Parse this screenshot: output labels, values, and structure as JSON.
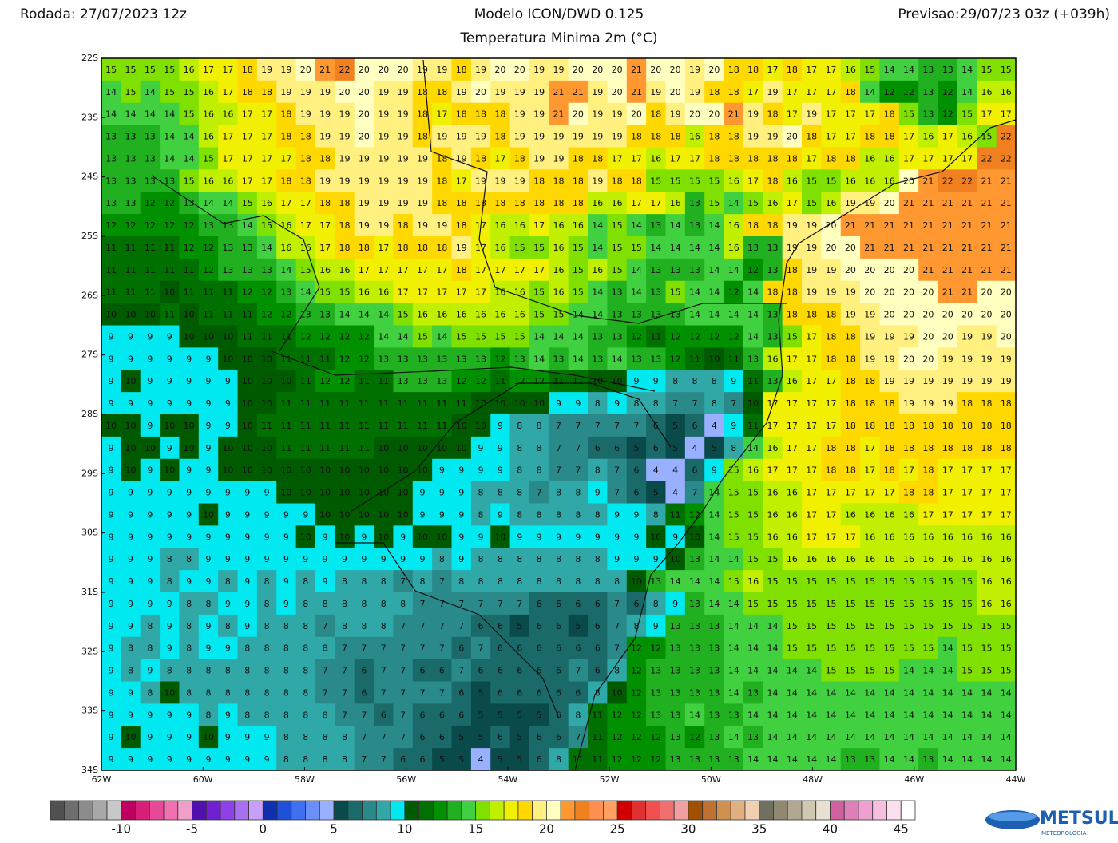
{
  "header": {
    "left": "Rodada: 27/07/2023 12z",
    "center": "Modelo ICON/DWD 0.125",
    "subtitle": "Temperatura Minima 2m (°C)",
    "right": "Previsao:29/07/23 03z (+039h)"
  },
  "lat_labels": [
    "22S",
    "23S",
    "24S",
    "25S",
    "26S",
    "27S",
    "28S",
    "29S",
    "30S",
    "31S",
    "32S",
    "33S",
    "34S"
  ],
  "lon_labels": [
    "62W",
    "60W",
    "58W",
    "56W",
    "54W",
    "52W",
    "50W",
    "48W",
    "46W",
    "44W"
  ],
  "grid": {
    "values": [
      [
        15,
        15,
        15,
        15,
        16,
        17,
        17,
        18,
        19,
        19,
        20,
        21,
        22,
        20,
        20,
        20,
        19,
        19,
        18,
        19,
        20,
        20,
        19,
        19,
        20,
        20,
        20,
        21,
        20,
        20,
        19,
        20,
        18,
        18,
        17,
        18,
        17,
        17,
        16,
        15,
        14,
        14,
        13,
        13,
        14,
        15,
        15
      ],
      [
        14,
        15,
        14,
        15,
        15,
        16,
        17,
        18,
        18,
        19,
        19,
        19,
        20,
        20,
        19,
        19,
        18,
        18,
        19,
        20,
        19,
        19,
        19,
        21,
        21,
        19,
        20,
        21,
        19,
        20,
        19,
        18,
        18,
        17,
        19,
        17,
        17,
        17,
        18,
        14,
        12,
        12,
        13,
        12,
        14,
        16,
        16
      ],
      [
        14,
        14,
        14,
        14,
        15,
        16,
        16,
        17,
        17,
        18,
        19,
        19,
        19,
        20,
        19,
        19,
        18,
        17,
        18,
        18,
        18,
        19,
        19,
        21,
        20,
        19,
        19,
        20,
        18,
        19,
        20,
        20,
        21,
        19,
        18,
        17,
        19,
        17,
        17,
        17,
        18,
        15,
        13,
        12,
        15,
        17,
        17
      ],
      [
        13,
        13,
        13,
        14,
        14,
        16,
        17,
        17,
        17,
        18,
        18,
        19,
        19,
        20,
        19,
        19,
        18,
        19,
        19,
        19,
        18,
        19,
        19,
        19,
        19,
        19,
        19,
        18,
        18,
        18,
        16,
        18,
        18,
        19,
        19,
        20,
        18,
        17,
        17,
        18,
        18,
        17,
        16,
        17,
        16,
        15,
        22
      ],
      [
        13,
        13,
        13,
        14,
        14,
        15,
        17,
        17,
        17,
        17,
        18,
        18,
        19,
        19,
        19,
        19,
        19,
        18,
        19,
        18,
        17,
        18,
        19,
        19,
        18,
        18,
        17,
        17,
        16,
        17,
        17,
        18,
        18,
        18,
        18,
        18,
        17,
        18,
        18,
        16,
        16,
        17,
        17,
        17,
        17,
        22,
        22
      ],
      [
        13,
        13,
        13,
        13,
        15,
        16,
        16,
        17,
        17,
        18,
        18,
        19,
        19,
        19,
        19,
        19,
        19,
        18,
        17,
        19,
        19,
        19,
        18,
        18,
        18,
        19,
        18,
        18,
        15,
        15,
        15,
        15,
        16,
        17,
        18,
        16,
        15,
        15,
        16,
        16,
        16,
        20,
        21,
        22,
        22,
        21,
        21
      ],
      [
        13,
        13,
        12,
        12,
        13,
        14,
        14,
        15,
        16,
        17,
        17,
        18,
        18,
        19,
        19,
        19,
        19,
        18,
        18,
        18,
        18,
        18,
        18,
        18,
        18,
        16,
        16,
        17,
        17,
        16,
        13,
        15,
        14,
        15,
        16,
        17,
        15,
        16,
        19,
        19,
        20,
        21,
        21,
        21,
        21,
        21,
        21
      ],
      [
        12,
        12,
        12,
        12,
        12,
        13,
        13,
        14,
        15,
        16,
        17,
        17,
        18,
        19,
        19,
        18,
        19,
        19,
        18,
        17,
        16,
        16,
        17,
        16,
        16,
        14,
        15,
        14,
        13,
        14,
        13,
        14,
        16,
        18,
        18,
        19,
        19,
        20,
        21,
        21,
        21,
        21,
        21,
        21,
        21,
        21,
        21
      ],
      [
        11,
        11,
        11,
        11,
        12,
        12,
        13,
        13,
        14,
        16,
        16,
        17,
        18,
        18,
        17,
        18,
        18,
        18,
        19,
        17,
        16,
        15,
        15,
        16,
        15,
        14,
        15,
        15,
        14,
        14,
        14,
        14,
        16,
        13,
        13,
        19,
        19,
        20,
        20,
        21,
        21,
        21,
        21,
        21,
        21,
        21,
        21
      ],
      [
        11,
        11,
        11,
        11,
        11,
        12,
        13,
        13,
        13,
        14,
        15,
        16,
        16,
        17,
        17,
        17,
        17,
        17,
        18,
        17,
        17,
        17,
        17,
        16,
        15,
        16,
        15,
        14,
        13,
        13,
        13,
        14,
        14,
        12,
        13,
        18,
        19,
        19,
        20,
        20,
        20,
        20,
        21,
        21,
        21,
        21,
        21
      ],
      [
        11,
        11,
        11,
        10,
        11,
        11,
        11,
        12,
        12,
        13,
        14,
        15,
        15,
        16,
        16,
        17,
        17,
        17,
        17,
        17,
        16,
        16,
        15,
        16,
        15,
        14,
        13,
        14,
        13,
        15,
        14,
        14,
        12,
        14,
        18,
        18,
        19,
        19,
        19,
        20,
        20,
        20,
        20,
        21,
        21,
        20,
        20
      ],
      [
        10,
        10,
        10,
        11,
        10,
        11,
        11,
        11,
        12,
        12,
        13,
        13,
        14,
        14,
        14,
        15,
        16,
        16,
        16,
        16,
        16,
        16,
        15,
        15,
        14,
        14,
        13,
        13,
        13,
        13,
        14,
        14,
        14,
        14,
        13,
        18,
        18,
        18,
        19,
        19,
        20,
        20,
        20,
        20,
        20,
        20,
        20
      ],
      [
        9,
        9,
        9,
        9,
        10,
        10,
        10,
        11,
        11,
        11,
        12,
        12,
        12,
        12,
        14,
        14,
        15,
        14,
        15,
        15,
        15,
        15,
        14,
        14,
        14,
        13,
        13,
        12,
        11,
        12,
        12,
        12,
        12,
        14,
        13,
        15,
        17,
        18,
        18,
        19,
        19,
        19,
        20,
        20,
        19,
        19,
        20
      ],
      [
        9,
        9,
        9,
        9,
        9,
        9,
        10,
        10,
        10,
        11,
        11,
        11,
        12,
        12,
        13,
        13,
        13,
        13,
        13,
        13,
        12,
        13,
        14,
        13,
        14,
        13,
        14,
        13,
        13,
        12,
        11,
        10,
        11,
        13,
        16,
        17,
        17,
        18,
        18,
        19,
        19,
        20,
        20,
        19,
        19,
        19,
        19
      ],
      [
        9,
        10,
        9,
        9,
        9,
        9,
        9,
        10,
        10,
        10,
        11,
        12,
        12,
        11,
        11,
        13,
        13,
        13,
        12,
        12,
        11,
        12,
        12,
        11,
        11,
        10,
        10,
        9,
        9,
        8,
        8,
        8,
        9,
        11,
        13,
        16,
        17,
        17,
        18,
        18,
        19,
        19,
        19,
        19,
        19,
        19,
        19
      ],
      [
        9,
        9,
        9,
        9,
        9,
        9,
        9,
        10,
        10,
        11,
        11,
        11,
        11,
        11,
        11,
        11,
        11,
        11,
        11,
        10,
        10,
        10,
        10,
        9,
        9,
        8,
        9,
        8,
        8,
        7,
        7,
        8,
        7,
        10,
        17,
        17,
        17,
        17,
        18,
        18,
        18,
        19,
        19,
        19,
        18,
        18,
        18
      ],
      [
        10,
        10,
        9,
        10,
        10,
        9,
        9,
        10,
        11,
        11,
        11,
        11,
        11,
        11,
        11,
        11,
        11,
        11,
        10,
        10,
        9,
        8,
        8,
        7,
        7,
        7,
        7,
        7,
        6,
        5,
        6,
        4,
        9,
        11,
        17,
        17,
        17,
        17,
        18,
        18,
        18,
        18,
        18,
        18,
        18,
        18,
        18
      ],
      [
        9,
        10,
        10,
        9,
        10,
        9,
        10,
        10,
        10,
        11,
        11,
        11,
        11,
        11,
        10,
        10,
        10,
        10,
        10,
        9,
        9,
        8,
        8,
        7,
        7,
        6,
        6,
        5,
        6,
        5,
        4,
        5,
        8,
        14,
        16,
        17,
        17,
        18,
        18,
        17,
        18,
        18,
        18,
        18,
        18,
        18,
        18
      ],
      [
        9,
        10,
        9,
        10,
        9,
        9,
        10,
        10,
        10,
        10,
        10,
        10,
        10,
        10,
        10,
        10,
        10,
        9,
        9,
        9,
        9,
        8,
        8,
        7,
        7,
        8,
        7,
        6,
        4,
        4,
        6,
        9,
        15,
        16,
        17,
        17,
        17,
        18,
        18,
        17,
        18,
        17,
        18,
        17,
        17,
        17,
        17
      ],
      [
        9,
        9,
        9,
        9,
        9,
        9,
        9,
        9,
        9,
        10,
        10,
        10,
        10,
        10,
        10,
        10,
        9,
        9,
        9,
        8,
        8,
        8,
        7,
        8,
        8,
        9,
        7,
        6,
        5,
        4,
        7,
        14,
        15,
        15,
        16,
        16,
        17,
        17,
        17,
        17,
        17,
        18,
        18,
        17,
        17,
        17,
        17
      ],
      [
        9,
        9,
        9,
        9,
        9,
        10,
        9,
        9,
        9,
        9,
        9,
        10,
        10,
        10,
        10,
        10,
        9,
        9,
        9,
        8,
        9,
        8,
        8,
        8,
        8,
        8,
        9,
        9,
        8,
        11,
        12,
        14,
        15,
        15,
        16,
        16,
        17,
        17,
        16,
        16,
        16,
        16,
        17,
        17,
        17,
        17,
        17
      ],
      [
        9,
        9,
        9,
        9,
        9,
        9,
        9,
        9,
        9,
        9,
        10,
        9,
        10,
        9,
        10,
        9,
        10,
        10,
        9,
        9,
        10,
        9,
        9,
        9,
        9,
        9,
        9,
        9,
        10,
        9,
        10,
        14,
        15,
        15,
        16,
        16,
        17,
        17,
        17,
        16,
        16,
        16,
        16,
        16,
        16,
        16,
        16
      ],
      [
        9,
        9,
        9,
        8,
        8,
        9,
        9,
        9,
        9,
        9,
        9,
        9,
        9,
        9,
        9,
        9,
        9,
        8,
        9,
        8,
        8,
        8,
        8,
        8,
        8,
        8,
        9,
        9,
        9,
        10,
        13,
        14,
        14,
        15,
        15,
        16,
        16,
        16,
        16,
        16,
        16,
        16,
        16,
        16,
        16,
        16,
        16
      ],
      [
        9,
        9,
        9,
        8,
        9,
        9,
        8,
        9,
        8,
        9,
        8,
        9,
        8,
        8,
        8,
        7,
        8,
        7,
        8,
        8,
        8,
        8,
        8,
        8,
        8,
        8,
        8,
        10,
        13,
        14,
        14,
        14,
        15,
        16,
        15,
        15,
        15,
        15,
        15,
        15,
        15,
        15,
        15,
        15,
        15,
        16,
        16
      ],
      [
        9,
        9,
        9,
        9,
        8,
        8,
        9,
        9,
        8,
        9,
        8,
        8,
        8,
        8,
        8,
        8,
        7,
        7,
        7,
        7,
        7,
        7,
        6,
        6,
        6,
        6,
        7,
        6,
        8,
        9,
        13,
        14,
        14,
        15,
        15,
        15,
        15,
        15,
        15,
        15,
        15,
        15,
        15,
        15,
        15,
        16,
        16
      ],
      [
        9,
        9,
        8,
        9,
        8,
        9,
        8,
        9,
        8,
        8,
        8,
        7,
        8,
        8,
        8,
        7,
        7,
        7,
        7,
        6,
        6,
        5,
        6,
        6,
        5,
        6,
        7,
        8,
        9,
        13,
        13,
        13,
        14,
        14,
        14,
        15,
        15,
        15,
        15,
        15,
        15,
        15,
        15,
        15,
        15,
        15,
        15
      ],
      [
        9,
        8,
        8,
        9,
        8,
        9,
        9,
        8,
        8,
        8,
        8,
        8,
        7,
        7,
        7,
        7,
        7,
        7,
        6,
        7,
        6,
        6,
        6,
        6,
        6,
        6,
        7,
        12,
        12,
        13,
        13,
        13,
        14,
        14,
        14,
        15,
        15,
        15,
        15,
        15,
        15,
        15,
        15,
        14,
        15,
        15,
        15
      ],
      [
        9,
        8,
        9,
        8,
        8,
        8,
        8,
        8,
        8,
        8,
        8,
        7,
        7,
        6,
        7,
        7,
        6,
        6,
        7,
        6,
        6,
        6,
        6,
        6,
        7,
        6,
        8,
        12,
        13,
        13,
        13,
        13,
        14,
        14,
        14,
        14,
        14,
        15,
        15,
        15,
        15,
        14,
        14,
        14,
        15,
        15,
        15
      ],
      [
        9,
        9,
        8,
        10,
        8,
        8,
        8,
        8,
        8,
        8,
        8,
        7,
        7,
        6,
        7,
        7,
        7,
        7,
        6,
        5,
        6,
        6,
        6,
        6,
        6,
        8,
        10,
        12,
        13,
        13,
        13,
        13,
        14,
        13,
        14,
        14,
        14,
        14,
        14,
        14,
        14,
        14,
        14,
        14,
        14,
        14,
        14
      ],
      [
        9,
        9,
        9,
        9,
        9,
        8,
        9,
        8,
        8,
        8,
        8,
        8,
        7,
        7,
        6,
        7,
        6,
        6,
        6,
        5,
        5,
        5,
        5,
        6,
        8,
        11,
        12,
        12,
        13,
        13,
        14,
        13,
        13,
        14,
        14,
        14,
        14,
        14,
        14,
        14,
        14,
        14,
        14,
        14,
        14,
        14,
        14
      ],
      [
        9,
        10,
        9,
        9,
        9,
        10,
        9,
        9,
        9,
        8,
        8,
        8,
        8,
        7,
        7,
        7,
        6,
        6,
        5,
        5,
        6,
        5,
        6,
        6,
        7,
        11,
        12,
        12,
        12,
        13,
        12,
        13,
        14,
        13,
        14,
        14,
        14,
        14,
        14,
        14,
        14,
        14,
        14,
        14,
        14,
        14,
        14
      ],
      [
        9,
        9,
        9,
        9,
        9,
        9,
        9,
        9,
        9,
        8,
        8,
        8,
        8,
        7,
        7,
        6,
        6,
        5,
        5,
        4,
        5,
        5,
        6,
        8,
        11,
        11,
        12,
        12,
        12,
        13,
        13,
        13,
        13,
        14,
        14,
        14,
        14,
        14,
        13,
        13,
        14,
        14,
        13,
        14,
        14,
        14,
        14
      ]
    ]
  },
  "colorbar": {
    "min": -15,
    "ticks": [
      -10,
      -5,
      0,
      5,
      10,
      15,
      20,
      25,
      30,
      35,
      40,
      45
    ],
    "colors": [
      "#505050",
      "#6e6e6e",
      "#8c8c8c",
      "#a8a8a8",
      "#c8c8c8",
      "#c00060",
      "#d8207a",
      "#e84898",
      "#f070b0",
      "#f0a0c8",
      "#5010b0",
      "#7020d0",
      "#9040e8",
      "#a870f0",
      "#c8a0f8",
      "#1030b0",
      "#2050d8",
      "#4070f0",
      "#6890f8",
      "#98b0ff",
      "#0a4a4a",
      "#1a6a6a",
      "#2a8a8a",
      "#30a8a8",
      "#00e8f0",
      "#005a00",
      "#007000",
      "#009000",
      "#20b020",
      "#40d040",
      "#80e000",
      "#c0f000",
      "#f0f000",
      "#ffd800",
      "#fff080",
      "#ffffc0",
      "#ff9830",
      "#f08020",
      "#ff9050",
      "#ffa060",
      "#d00000",
      "#e03030",
      "#f05050",
      "#f07070",
      "#f0a0a0",
      "#a05000",
      "#c07030",
      "#d09050",
      "#e0b080",
      "#f0d0b0",
      "#707060",
      "#908870",
      "#b0a890",
      "#d0c8b0",
      "#e8e0d0",
      "#d060a0",
      "#e080b8",
      "#f0a0d0",
      "#f8c0e0",
      "#fce0f0",
      "#ffffff"
    ]
  },
  "logo": {
    "name": "METSUL",
    "tagline": "METEOROLOGIA"
  }
}
